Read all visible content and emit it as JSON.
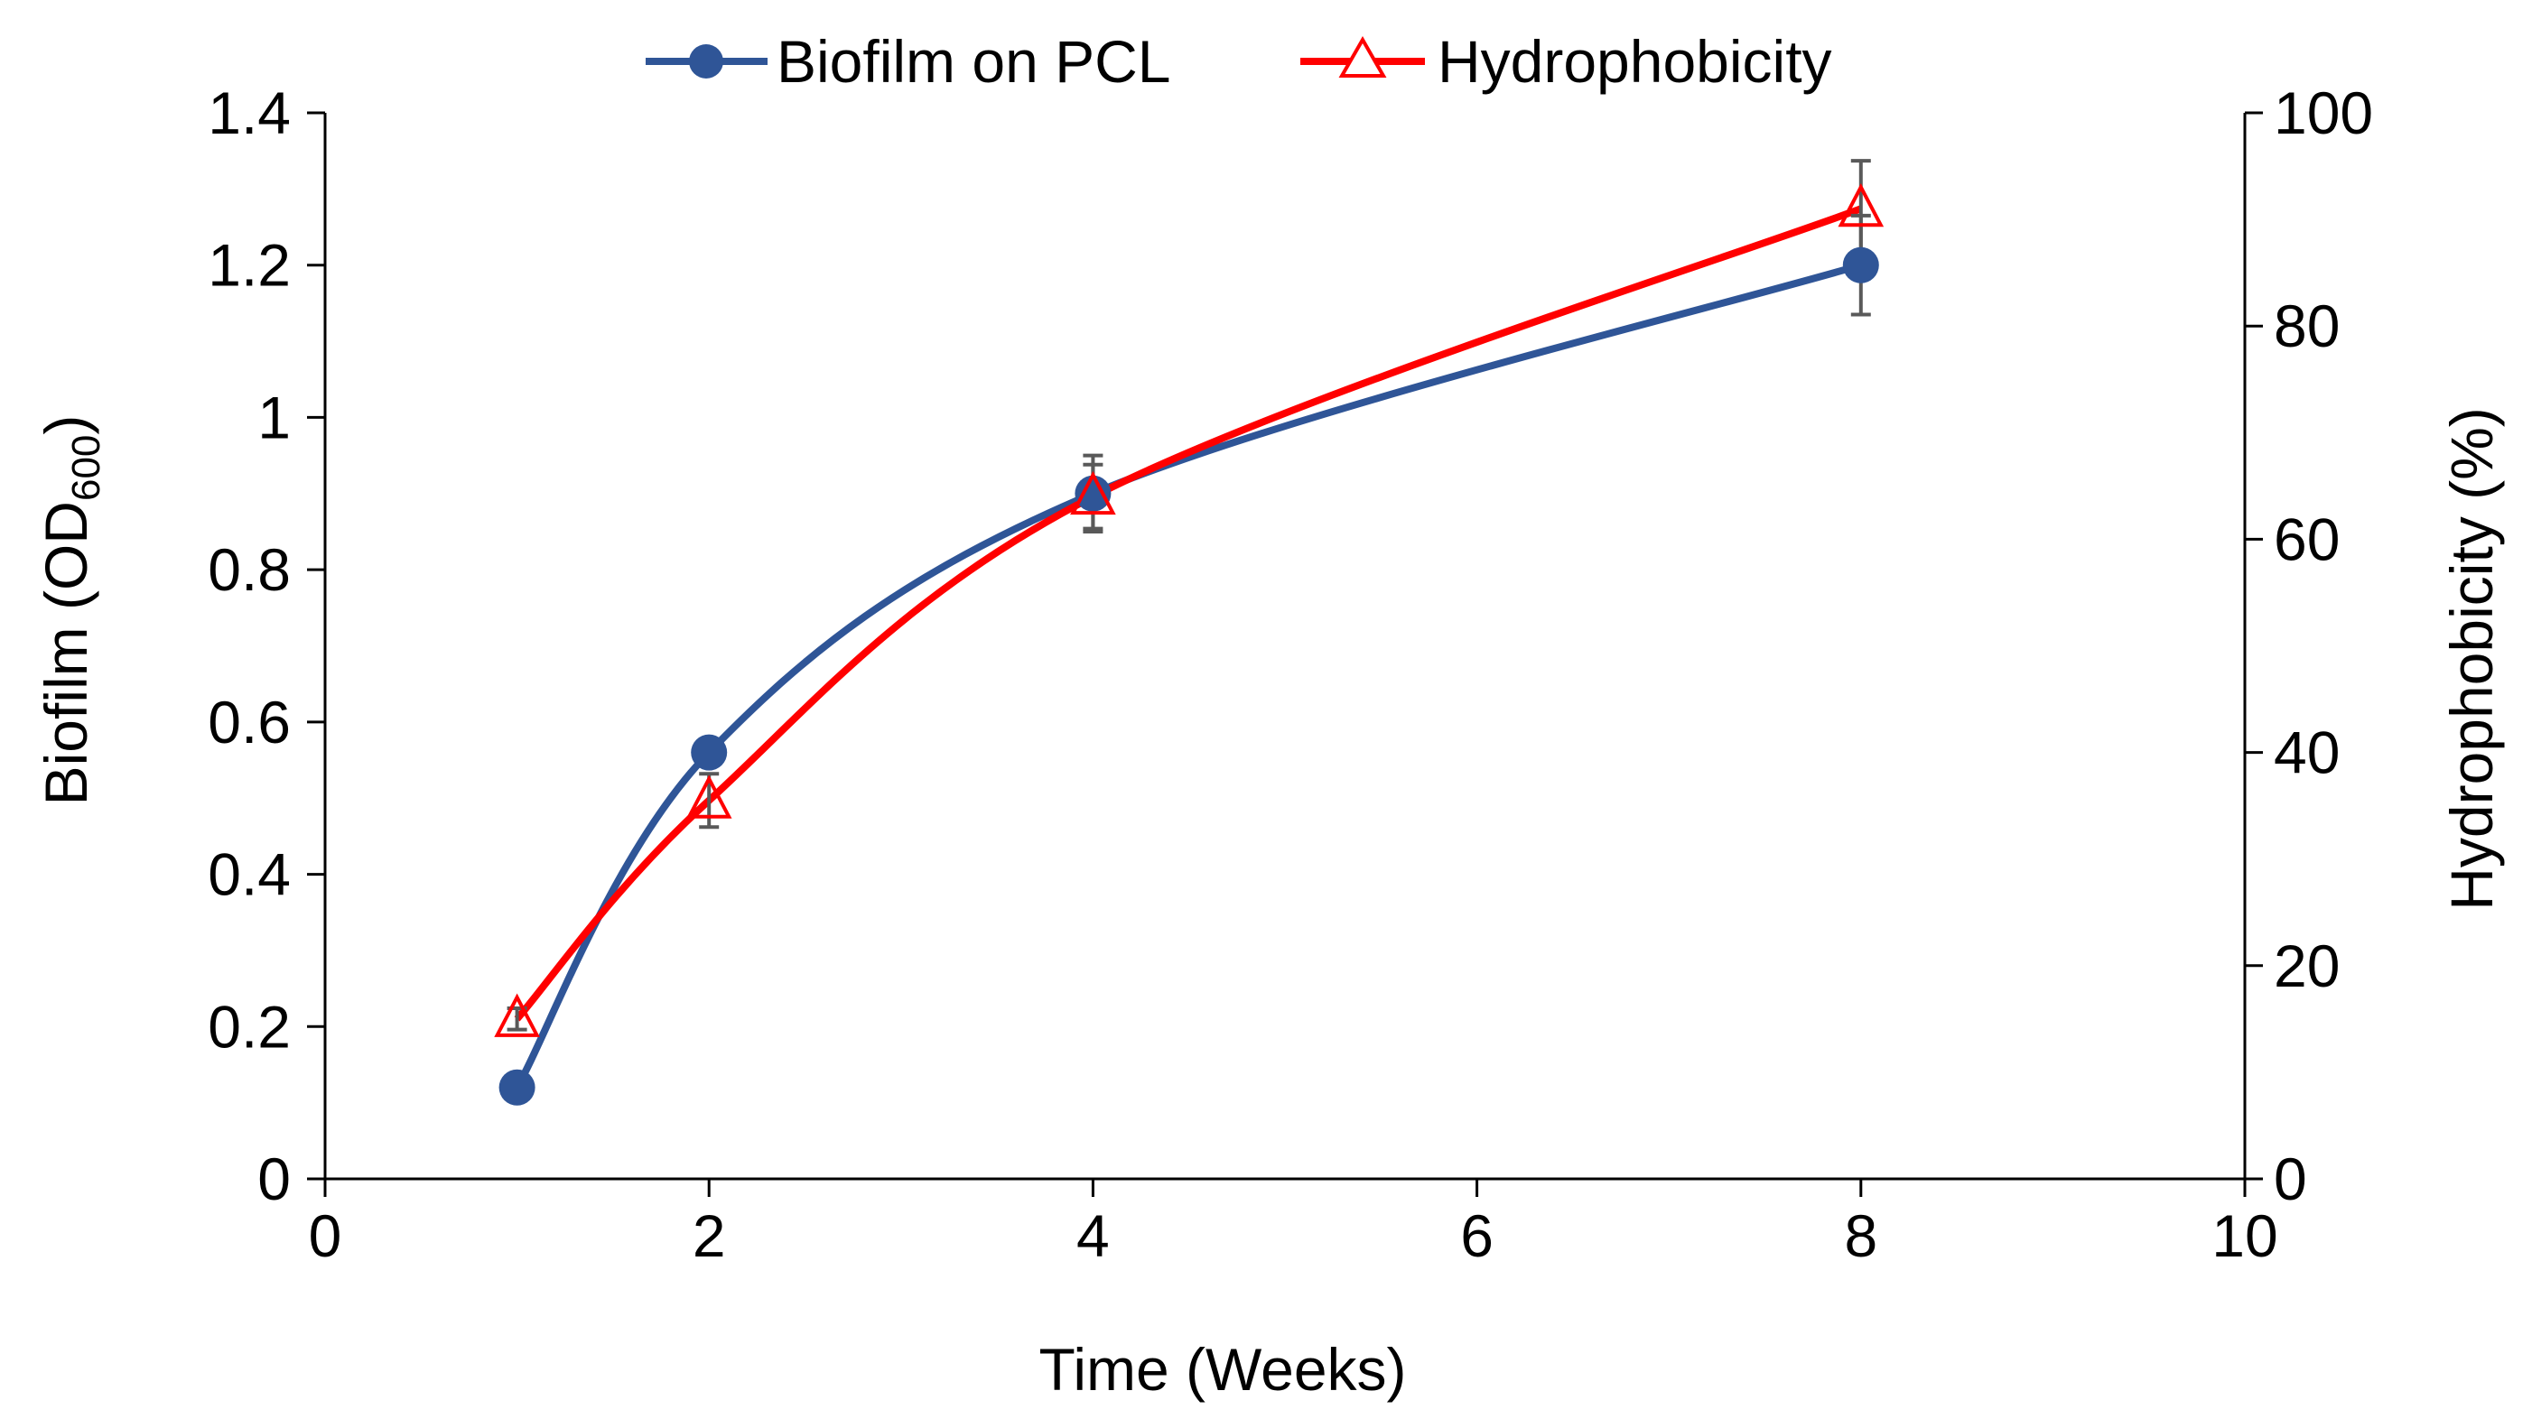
{
  "chart_data": {
    "type": "line",
    "title": "",
    "xlabel": "Time (Weeks)",
    "ylabel": "Biofilm (OD",
    "ylabel_sub": "600",
    "ylabel_close": ")",
    "y2label": "Hydrophobicity (%)",
    "xlim": [
      0,
      10
    ],
    "ylim": [
      0,
      1.4
    ],
    "y2lim": [
      0,
      100
    ],
    "xticks": [
      0,
      2,
      4,
      6,
      8,
      10
    ],
    "xtick_labels": [
      "0",
      "2",
      "4",
      "6",
      "8",
      "10"
    ],
    "yticks": [
      0,
      0.2,
      0.4,
      0.6,
      0.8,
      1,
      1.2,
      1.4
    ],
    "ytick_labels": [
      "0",
      "0.2",
      "0.4",
      "0.6",
      "0.8",
      "1",
      "1.2",
      "1.4"
    ],
    "y2ticks": [
      0,
      20,
      40,
      60,
      80,
      100
    ],
    "y2tick_labels": [
      "0",
      "20",
      "40",
      "60",
      "80",
      "100"
    ],
    "grid": false,
    "legend_position": "top-center",
    "series": [
      {
        "name": "Biofilm on PCL",
        "axis": "left",
        "color": "#2f5597",
        "marker": "circle",
        "x": [
          1,
          2,
          4,
          8
        ],
        "values": [
          0.12,
          0.56,
          0.9,
          1.2
        ],
        "errors": [
          0.01,
          0.01,
          0.05,
          0.065
        ]
      },
      {
        "name": "Hydrophobicity",
        "axis": "right",
        "color": "#ff0000",
        "marker": "triangle-open",
        "x": [
          1,
          2,
          4,
          8
        ],
        "values": [
          15,
          35.5,
          64,
          91
        ],
        "errors": [
          1,
          2.5,
          3,
          4.5
        ]
      }
    ],
    "error_bar_color": "#595959"
  }
}
